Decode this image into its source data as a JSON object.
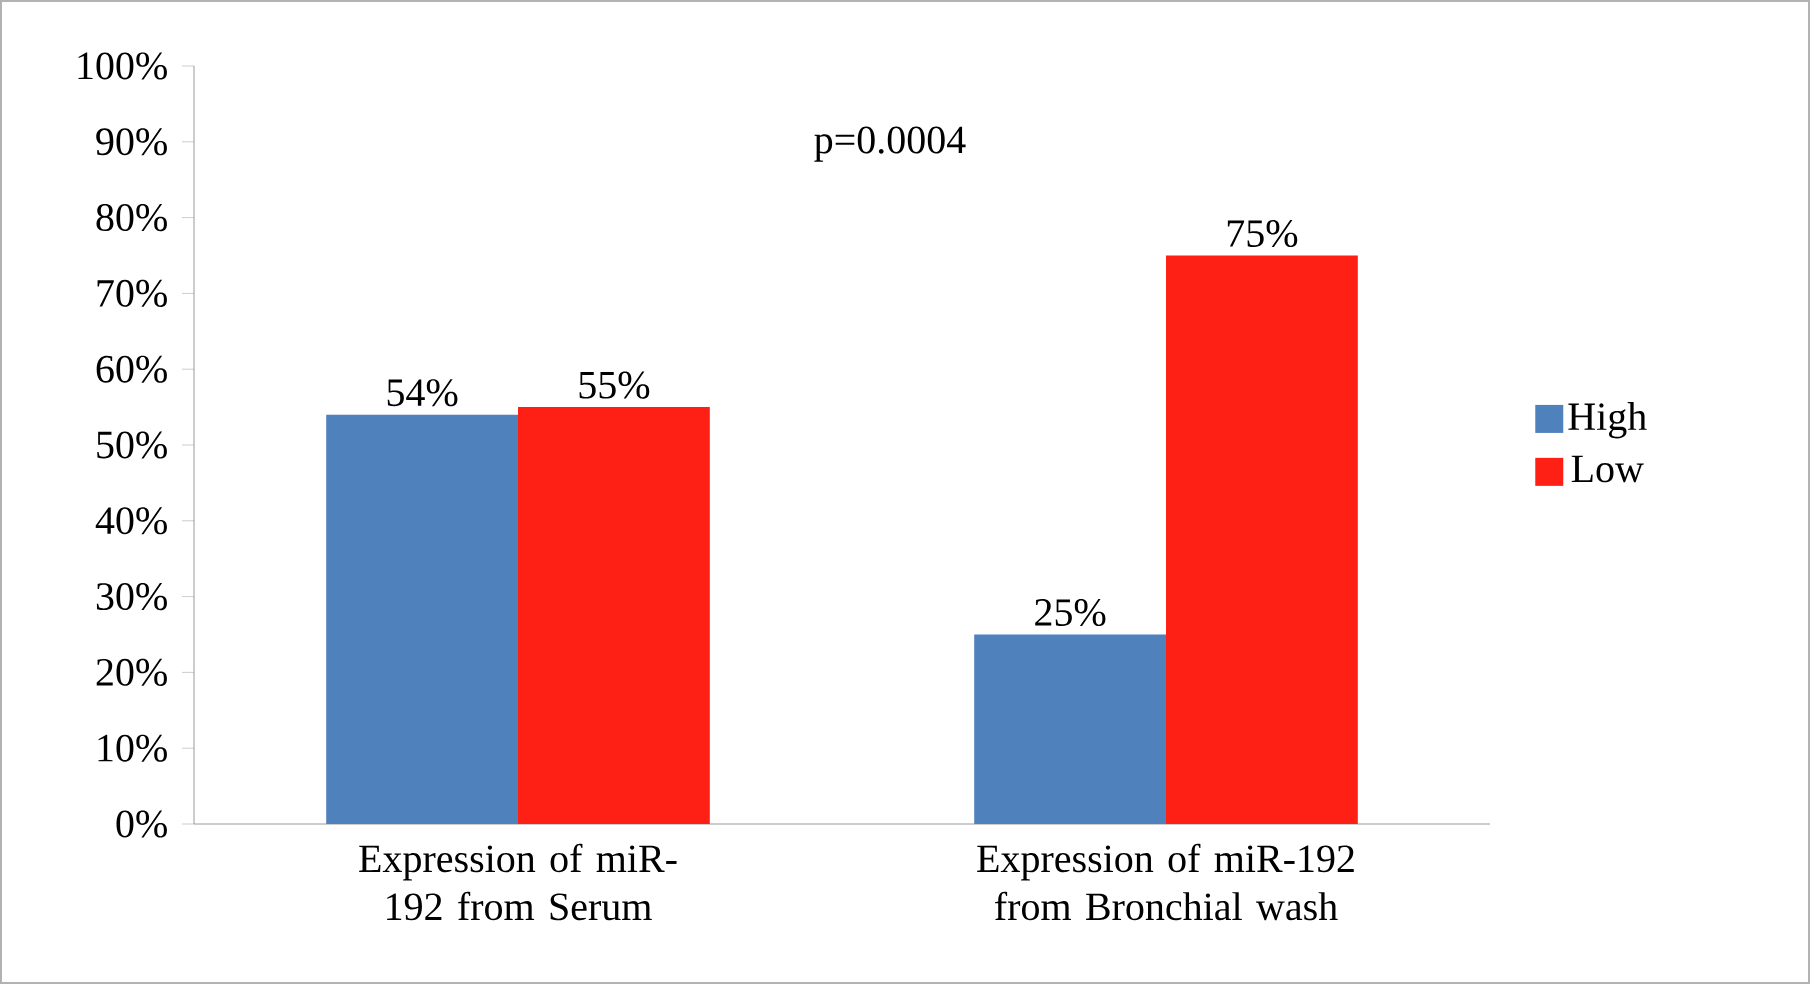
{
  "chart_data": {
    "type": "bar",
    "categories": [
      "Expression of miR-192 from Serum",
      "Expression of miR-192 from Bronchial wash"
    ],
    "series": [
      {
        "name": "High",
        "color": "#4f81bd",
        "values": [
          54,
          25
        ],
        "value_labels": [
          "54%",
          "25%"
        ]
      },
      {
        "name": "Low",
        "color": "#ff2015",
        "values": [
          55,
          75
        ],
        "value_labels": [
          "55%",
          "75%"
        ]
      }
    ],
    "ylim": [
      0,
      100
    ],
    "yticks": [
      {
        "value": 0,
        "label": "0%"
      },
      {
        "value": 10,
        "label": "10%"
      },
      {
        "value": 20,
        "label": "20%"
      },
      {
        "value": 30,
        "label": "30%"
      },
      {
        "value": 40,
        "label": "40%"
      },
      {
        "value": 50,
        "label": "50%"
      },
      {
        "value": 60,
        "label": "60%"
      },
      {
        "value": 70,
        "label": "70%"
      },
      {
        "value": 80,
        "label": "80%"
      },
      {
        "value": 90,
        "label": "90%"
      },
      {
        "value": 100,
        "label": "100%"
      }
    ],
    "annotations": [
      "p=0.0004"
    ],
    "legend": "right",
    "grid": false
  }
}
